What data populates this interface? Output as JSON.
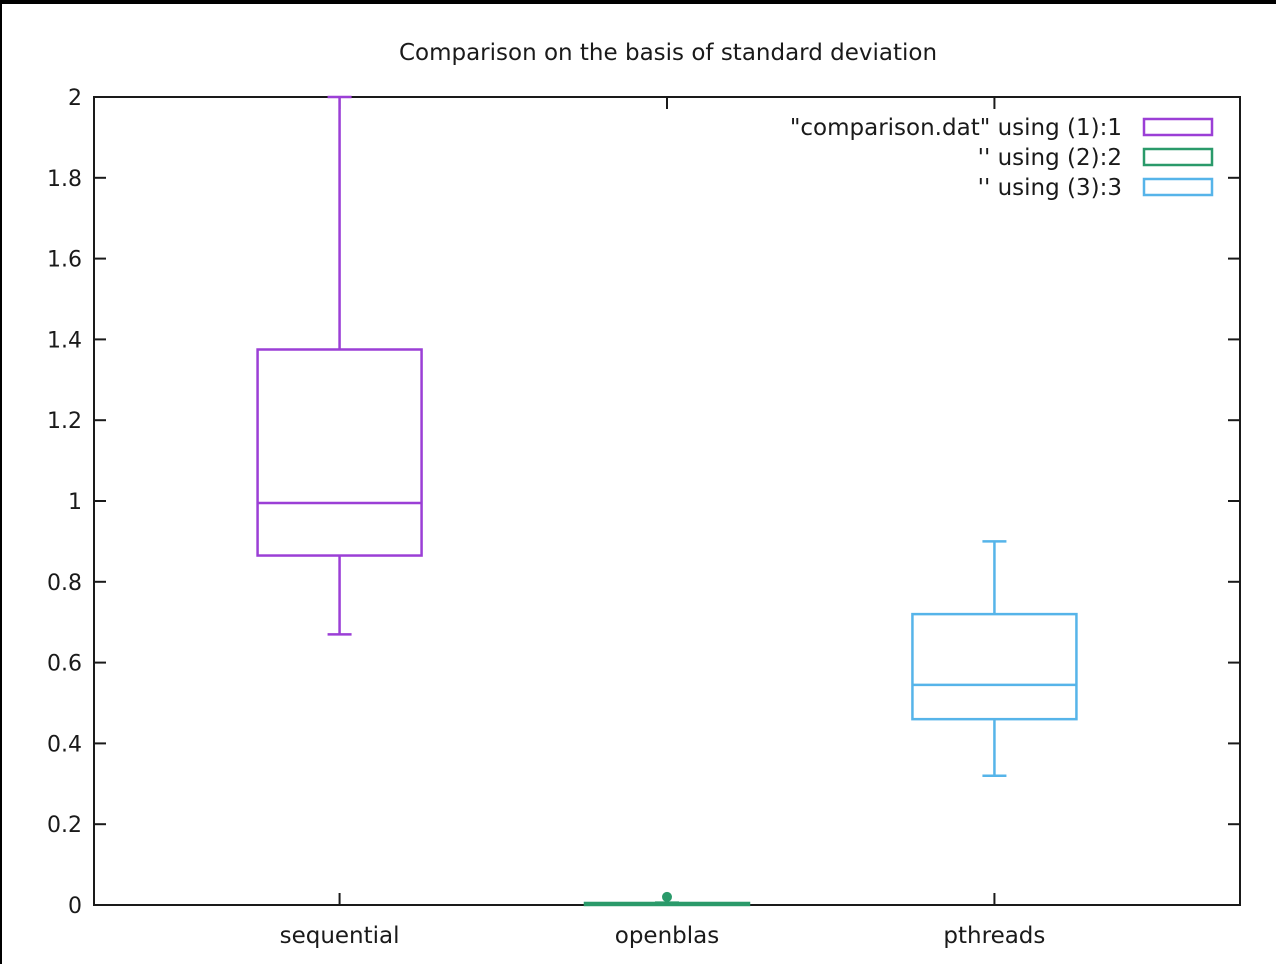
{
  "chart_data": {
    "type": "boxplot",
    "title": "Comparison on the basis of standard deviation",
    "xlabel": "",
    "ylabel": "",
    "ylim": [
      0,
      2
    ],
    "yticks": [
      "0",
      "0.2",
      "0.4",
      "0.6",
      "0.8",
      "1",
      "1.2",
      "1.4",
      "1.6",
      "1.8",
      "2"
    ],
    "categories": [
      "sequential",
      "openblas",
      "pthreads"
    ],
    "legend_position": "top-right",
    "grid": false,
    "series": [
      {
        "name": "\"comparison.dat\" using (1):1",
        "category": "sequential",
        "whisker_low": 0.67,
        "q1": 0.865,
        "median": 0.995,
        "q3": 1.375,
        "whisker_high": 2.0,
        "outliers": [],
        "color": "#9b3fd6"
      },
      {
        "name": "'' using (2):2",
        "category": "openblas",
        "whisker_low": 0.002,
        "q1": 0.003,
        "median": 0.004,
        "q3": 0.005,
        "whisker_high": 0.006,
        "outliers": [
          0.02
        ],
        "color": "#2a9a6a"
      },
      {
        "name": "'' using (3):3",
        "category": "pthreads",
        "whisker_low": 0.32,
        "q1": 0.46,
        "median": 0.545,
        "q3": 0.72,
        "whisker_high": 0.9,
        "outliers": [],
        "color": "#56b4e9"
      }
    ]
  }
}
